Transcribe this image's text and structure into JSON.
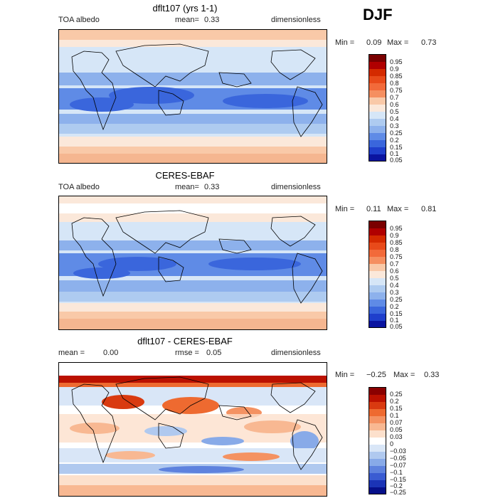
{
  "season": "DJF",
  "panels": [
    {
      "title": "dflt107 (yrs 1-1)",
      "left_label": "TOA albedo",
      "center_label": "mean=",
      "center_value": "0.33",
      "right_label": "dimensionless",
      "min_label": "Min =",
      "min_value": "0.09",
      "max_label": "Max =",
      "max_value": "0.73",
      "levels": [
        "0.95",
        "0.9",
        "0.85",
        "0.8",
        "0.75",
        "0.7",
        "0.6",
        "0.5",
        "0.4",
        "0.3",
        "0.25",
        "0.2",
        "0.15",
        "0.1",
        "0.05"
      ]
    },
    {
      "title": "CERES-EBAF",
      "left_label": "TOA albedo",
      "center_label": "mean=",
      "center_value": "0.33",
      "right_label": "dimensionless",
      "min_label": "Min =",
      "min_value": "0.11",
      "max_label": "Max =",
      "max_value": "0.81",
      "levels": [
        "0.95",
        "0.9",
        "0.85",
        "0.8",
        "0.75",
        "0.7",
        "0.6",
        "0.5",
        "0.4",
        "0.3",
        "0.25",
        "0.2",
        "0.15",
        "0.1",
        "0.05"
      ]
    },
    {
      "title": "dflt107 - CERES-EBAF",
      "left_label": "mean =",
      "left_value": "0.00",
      "center_label": "rmse =",
      "center_value": "0.05",
      "right_label": "dimensionless",
      "min_label": "Min =",
      "min_value": "−0.25",
      "max_label": "Max =",
      "max_value": "0.33",
      "levels": [
        "0.25",
        "0.2",
        "0.15",
        "0.1",
        "0.07",
        "0.05",
        "0.03",
        "0",
        "−0.03",
        "−0.05",
        "−0.07",
        "−0.1",
        "−0.15",
        "−0.2",
        "−0.25"
      ]
    }
  ],
  "colors": {
    "abs_scale": [
      "#7a0000",
      "#b00000",
      "#d42a00",
      "#e84a1a",
      "#f26a3a",
      "#f58f60",
      "#f9c9a8",
      "#fbe8da",
      "#d6e6f7",
      "#aecbf0",
      "#8db1ec",
      "#5f8be6",
      "#3a66dc",
      "#1f3fcc",
      "#0a14a0"
    ],
    "diff_scale": [
      "#8a0000",
      "#bb1100",
      "#d93a10",
      "#ee6a30",
      "#f49262",
      "#f8b892",
      "#fce0cc",
      "#ffffff",
      "#d9e6f7",
      "#b0c9ef",
      "#88aae8",
      "#5e82de",
      "#3a5cd2",
      "#1b34b6",
      "#06108a"
    ]
  }
}
